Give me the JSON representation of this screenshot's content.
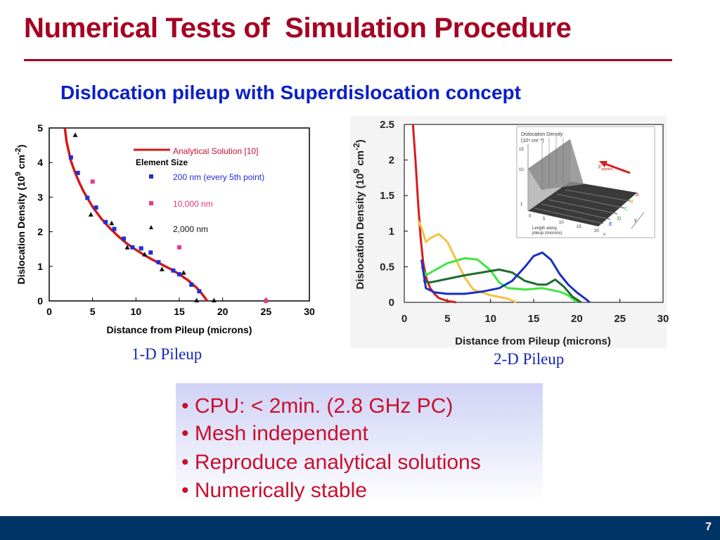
{
  "slide": {
    "title": "Numerical Tests of  Simulation Procedure",
    "subtitle": "Dislocation pileup with Superdislocation concept",
    "page_number": "7",
    "accent_color": "#a50021",
    "subtitle_color": "#0a1fc7",
    "footer_color": "#003366"
  },
  "captions": {
    "left": "1-D Pileup",
    "right": "2-D Pileup"
  },
  "bullets": [
    "• CPU: < 2min. (2.8 GHz PC)",
    "• Mesh independent",
    "• Reproduce analytical solutions",
    "• Numerically stable"
  ],
  "chart_data": [
    {
      "type": "scatter",
      "xlabel": "Distance from Pileup (microns)",
      "ylabel": "Dislocation Density (10^9 cm^-2)",
      "xlim": [
        0,
        30
      ],
      "ylim": [
        0,
        5
      ],
      "xticks": [
        0,
        5,
        10,
        15,
        20,
        25,
        30
      ],
      "yticks": [
        0,
        1,
        2,
        3,
        4,
        5
      ],
      "legend_title": "Element Size",
      "legend_position": "top-right",
      "series": [
        {
          "name": "Analytical Solution [10]",
          "kind": "line",
          "color": "#d41a1a",
          "x": [
            1.8,
            2.0,
            2.5,
            3.0,
            3.5,
            4.0,
            5.0,
            6.0,
            7.0,
            8.0,
            9.0,
            10.0,
            11.0,
            12.0,
            13.0,
            14.0,
            15.0,
            16.0,
            17.0,
            17.5,
            18.0,
            18.2
          ],
          "y": [
            5.0,
            4.6,
            4.05,
            3.7,
            3.4,
            3.15,
            2.72,
            2.38,
            2.1,
            1.86,
            1.65,
            1.48,
            1.32,
            1.18,
            1.05,
            0.92,
            0.77,
            0.6,
            0.38,
            0.24,
            0.08,
            0.0
          ]
        },
        {
          "name": "200 nm (every 5th point)",
          "kind": "marker",
          "marker": "square",
          "color": "#1f2fd4",
          "x": [
            2.5,
            3.3,
            4.4,
            5.4,
            6.5,
            7.5,
            8.6,
            9.6,
            10.6,
            11.7,
            12.6,
            14.3,
            15.0,
            16.4,
            17.3
          ],
          "y": [
            4.15,
            3.7,
            2.98,
            2.7,
            2.28,
            2.08,
            1.8,
            1.55,
            1.52,
            1.4,
            1.12,
            0.88,
            0.77,
            0.47,
            0.28
          ]
        },
        {
          "name": "10,000 nm",
          "kind": "marker",
          "marker": "square",
          "color": "#e83a86",
          "x": [
            5.0,
            15.0,
            25.0
          ],
          "y": [
            3.45,
            1.55,
            0.0
          ]
        },
        {
          "name": "2,000 nm",
          "kind": "marker",
          "marker": "triangle",
          "color": "#111111",
          "x": [
            3.0,
            4.8,
            7.2,
            9.0,
            11.0,
            13.0,
            15.5,
            17.0,
            19.0
          ],
          "y": [
            4.8,
            2.5,
            2.25,
            1.55,
            1.35,
            0.92,
            0.82,
            0.02,
            0.02
          ]
        }
      ]
    },
    {
      "type": "line",
      "xlabel": "Distance from Pileup (microns)",
      "ylabel": "Dislocation Density (10^9 cm^-2)",
      "xlim": [
        0,
        30
      ],
      "ylim": [
        0,
        2.5
      ],
      "xticks": [
        0,
        5,
        10,
        15,
        20,
        25,
        30
      ],
      "yticks": [
        0,
        0.5,
        1,
        1.5,
        2,
        2.5
      ],
      "series": [
        {
          "color": "#d81c1c",
          "x": [
            1.0,
            1.3,
            1.6,
            1.9,
            2.2,
            2.6,
            3.0,
            3.5,
            4.0,
            5.0,
            6.0
          ],
          "y": [
            2.5,
            2.0,
            1.4,
            0.9,
            0.55,
            0.32,
            0.2,
            0.12,
            0.06,
            0.02,
            0.0
          ]
        },
        {
          "color": "#f5c242",
          "x": [
            1.6,
            2.0,
            2.5,
            3.0,
            4.0,
            5.0,
            6.0,
            7.0,
            8.0,
            10.0,
            12.0,
            13.0
          ],
          "y": [
            1.15,
            1.05,
            0.85,
            0.9,
            0.96,
            0.85,
            0.6,
            0.35,
            0.18,
            0.1,
            0.05,
            0.0
          ]
        },
        {
          "color": "#3ee53e",
          "x": [
            2.0,
            2.5,
            3.5,
            5.0,
            7.0,
            8.5,
            10.0,
            11.0,
            12.0,
            14.0,
            16.0,
            18.0,
            19.0,
            20.0
          ],
          "y": [
            0.5,
            0.38,
            0.45,
            0.55,
            0.62,
            0.6,
            0.45,
            0.28,
            0.2,
            0.18,
            0.2,
            0.15,
            0.1,
            0.0
          ]
        },
        {
          "color": "#1e6b2e",
          "x": [
            2.2,
            3.0,
            5.0,
            7.0,
            9.0,
            11.0,
            12.5,
            14.0,
            15.5,
            16.5,
            17.5,
            18.5,
            19.5,
            20.5
          ],
          "y": [
            0.3,
            0.28,
            0.33,
            0.38,
            0.42,
            0.46,
            0.42,
            0.3,
            0.25,
            0.25,
            0.32,
            0.22,
            0.08,
            0.0
          ]
        },
        {
          "color": "#1a2fc4",
          "x": [
            2.0,
            2.5,
            3.5,
            5.0,
            7.0,
            9.0,
            11.0,
            12.5,
            14.0,
            15.0,
            16.0,
            17.0,
            18.0,
            19.0,
            20.0,
            21.0,
            21.5
          ],
          "y": [
            0.6,
            0.2,
            0.14,
            0.12,
            0.12,
            0.15,
            0.2,
            0.3,
            0.5,
            0.65,
            0.7,
            0.6,
            0.4,
            0.25,
            0.14,
            0.05,
            0.0
          ]
        }
      ]
    }
  ],
  "inset": {
    "title_line1": "Dislocation Density",
    "title_line2": "(10⁹ cm⁻²)",
    "z_ticks": [
      "15",
      "10",
      "1"
    ],
    "x_ticks": [
      "0",
      "5",
      "10",
      "15",
      "20"
    ],
    "x_label_line1": "Length along",
    "x_label_line2": "pileup (microns)",
    "x_axis_letter": "x",
    "y_axis_letter": "y",
    "force_label": "F",
    "force_subscript": "applied",
    "row_labels": [
      "A",
      "B",
      "C",
      "D",
      "E"
    ],
    "row_colors": [
      "#d81c1c",
      "#e8a020",
      "#3ec83e",
      "#1e6b2e",
      "#1a2fc4"
    ],
    "arrow_color": "#d81c1c"
  }
}
